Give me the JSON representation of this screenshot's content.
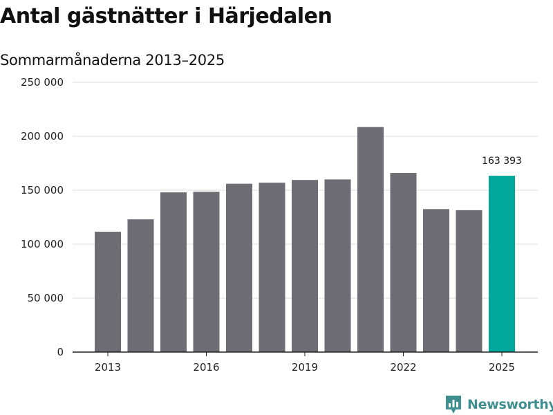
{
  "colors": {
    "bar": "#6e6d73",
    "highlight": "#00a79b",
    "grid": "#dddddd",
    "axis": "#222222",
    "brand": "#3f8f90"
  },
  "brand": {
    "name": "Newsworthy",
    "icon": "newsworthy-logo-icon"
  },
  "chart_data": {
    "type": "bar",
    "title": "Antal gästnätter i Härjedalen",
    "subtitle": "Sommarmånaderna 2013–2025",
    "categories": [
      "2013",
      "2014",
      "2015",
      "2016",
      "2017",
      "2018",
      "2019",
      "2020",
      "2021",
      "2022",
      "2023",
      "2024",
      "2025"
    ],
    "values": [
      111500,
      123000,
      148000,
      148500,
      156000,
      157000,
      159500,
      160000,
      208500,
      166000,
      132500,
      131500,
      163393
    ],
    "highlight_index": 12,
    "data_labels": [
      {
        "index": 12,
        "text": "163 393"
      }
    ],
    "ylim": [
      0,
      250000
    ],
    "y_ticks": [
      0,
      50000,
      100000,
      150000,
      200000,
      250000
    ],
    "y_tick_labels": [
      "0",
      "50 000",
      "100 000",
      "150 000",
      "200 000",
      "250 000"
    ],
    "x_tick_labels": [
      "2013",
      "2016",
      "2019",
      "2022",
      "2025"
    ],
    "grid": true,
    "legend": "none"
  }
}
